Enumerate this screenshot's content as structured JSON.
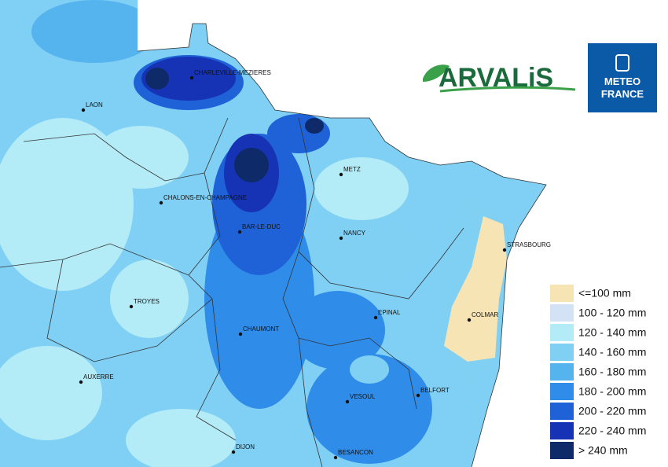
{
  "logos": {
    "arvalis": "ARVALiS",
    "meteo_line1": "METEO",
    "meteo_line2": "FRANCE"
  },
  "cities": [
    "CHARLEVILLE-MEZIERES",
    "LAON",
    "CHALONS-EN-CHAMPAGNE",
    "METZ",
    "BAR-LE-DUC",
    "NANCY",
    "STRASBOURG",
    "TROYES",
    "EPINAL",
    "COLMAR",
    "CHAUMONT",
    "AUXERRE",
    "BELFORT",
    "VESOUL",
    "DIJON",
    "BESANCON"
  ],
  "legend": [
    {
      "label": "<=100 mm",
      "color": "#f6e4b4"
    },
    {
      "label": "100 - 120 mm",
      "color": "#d3e3f5"
    },
    {
      "label": "120 - 140 mm",
      "color": "#b3ebf7"
    },
    {
      "label": "140 - 160 mm",
      "color": "#80d0f4"
    },
    {
      "label": "160 - 180 mm",
      "color": "#55b3ee"
    },
    {
      "label": "180 - 200 mm",
      "color": "#2f8ce8"
    },
    {
      "label": "200 - 220 mm",
      "color": "#1f62d8"
    },
    {
      "label": "220 - 240 mm",
      "color": "#1633b6"
    },
    {
      "label": "> 240 mm",
      "color": "#0f2a68"
    }
  ]
}
